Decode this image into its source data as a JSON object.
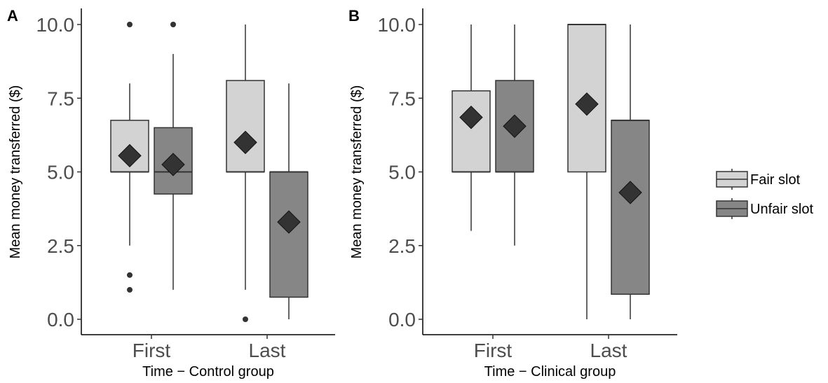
{
  "chart_data": [
    {
      "type": "boxplot",
      "panel_label": "A",
      "xlabel": "Time − Control group",
      "ylabel": "Mean money transferred ($)",
      "ylim": [
        0,
        10
      ],
      "yticks": [
        0,
        2.5,
        5,
        7.5,
        10
      ],
      "ytick_labels": [
        "0.0",
        "2.5",
        "5.0",
        "7.5",
        "10.0"
      ],
      "categories": [
        "First",
        "Last"
      ],
      "grid": false,
      "series": [
        {
          "name": "Fair slot",
          "color": "#d3d3d3",
          "boxes": [
            {
              "whisker_low": 2.5,
              "q1": 5.0,
              "median": 5.0,
              "q3": 6.75,
              "whisker_high": 8.0,
              "mean": 5.55,
              "outliers": [
                10.0,
                1.5,
                1.0
              ]
            },
            {
              "whisker_low": 1.0,
              "q1": 5.0,
              "median": 5.0,
              "q3": 8.1,
              "whisker_high": 10.0,
              "mean": 6.0,
              "outliers": [
                0.0
              ]
            }
          ]
        },
        {
          "name": "Unfair slot",
          "color": "#868686",
          "boxes": [
            {
              "whisker_low": 1.0,
              "q1": 4.25,
              "median": 5.0,
              "q3": 6.5,
              "whisker_high": 9.0,
              "mean": 5.25,
              "outliers": [
                10.0
              ]
            },
            {
              "whisker_low": 0.0,
              "q1": 0.75,
              "median": 5.0,
              "q3": 5.0,
              "whisker_high": 8.0,
              "mean": 3.3,
              "outliers": []
            }
          ]
        }
      ]
    },
    {
      "type": "boxplot",
      "panel_label": "B",
      "xlabel": "Time − Clinical group",
      "ylabel": "Mean money transferred ($)",
      "ylim": [
        0,
        10
      ],
      "yticks": [
        0,
        2.5,
        5,
        7.5,
        10
      ],
      "ytick_labels": [
        "0.0",
        "2.5",
        "5.0",
        "7.5",
        "10.0"
      ],
      "categories": [
        "First",
        "Last"
      ],
      "grid": false,
      "series": [
        {
          "name": "Fair slot",
          "color": "#d3d3d3",
          "boxes": [
            {
              "whisker_low": 3.0,
              "q1": 5.0,
              "median": 5.0,
              "q3": 7.75,
              "whisker_high": 10.0,
              "mean": 6.85,
              "outliers": []
            },
            {
              "whisker_low": 0.0,
              "q1": 5.0,
              "median": 10.0,
              "q3": 10.0,
              "whisker_high": 10.0,
              "mean": 7.3,
              "outliers": []
            }
          ]
        },
        {
          "name": "Unfair slot",
          "color": "#868686",
          "boxes": [
            {
              "whisker_low": 2.5,
              "q1": 5.0,
              "median": 5.0,
              "q3": 8.1,
              "whisker_high": 10.0,
              "mean": 6.55,
              "outliers": []
            },
            {
              "whisker_low": 0.0,
              "q1": 0.85,
              "median": 6.75,
              "q3": 6.75,
              "whisker_high": 10.0,
              "mean": 4.3,
              "outliers": []
            }
          ]
        }
      ]
    }
  ],
  "legend": {
    "placement": "right",
    "entries": [
      {
        "label": "Fair slot",
        "color": "#d3d3d3"
      },
      {
        "label": "Unfair slot",
        "color": "#868686"
      }
    ]
  }
}
